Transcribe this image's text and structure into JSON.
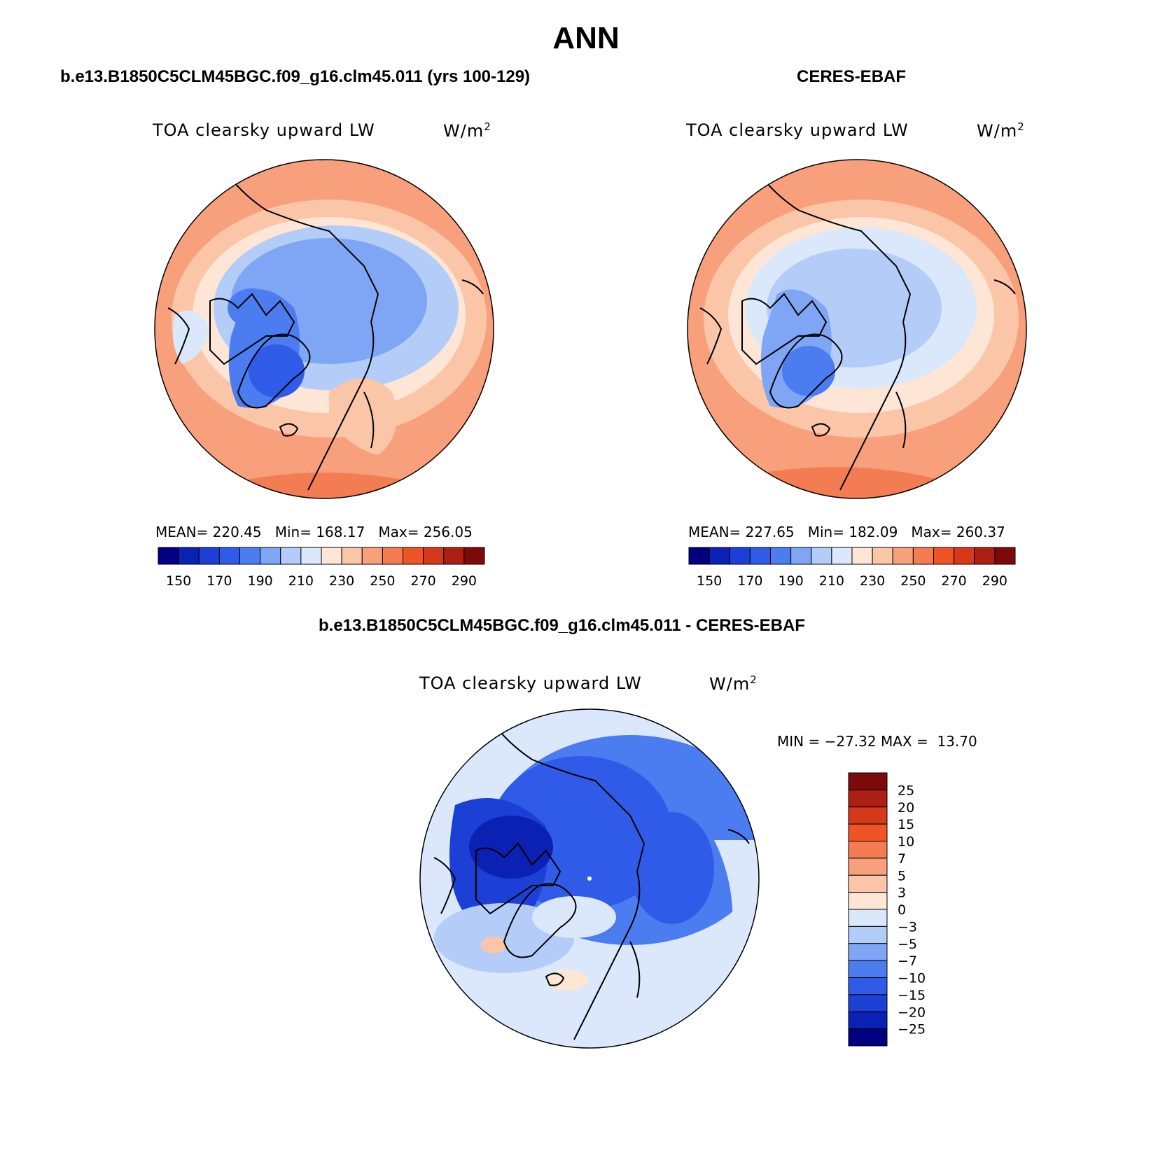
{
  "season": "ANN",
  "case_label": "b.e13.B1850C5CLM45BGC.f09_g16.clm45.011 (yrs 100-129)",
  "obs_label": "CERES-EBAF",
  "diff_label": "b.e13.B1850C5CLM45BGC.f09_g16.clm45.011 - CERES-EBAF",
  "variable": "TOA clearsky upward LW",
  "units": "W/m",
  "units_exp": "2",
  "panels": {
    "model": {
      "mean_label": "MEAN=",
      "mean": "220.45",
      "min_label": "Min=",
      "min": "168.17",
      "max_label": "Max=",
      "max": "256.05"
    },
    "obs": {
      "mean_label": "MEAN=",
      "mean": "227.65",
      "min_label": "Min=",
      "min": "182.09",
      "max_label": "Max=",
      "max": "260.37"
    },
    "diff": {
      "min_label": "MIN =",
      "min": "−27.32",
      "max_label": "MAX =",
      "max": "13.70"
    }
  },
  "abs_colorbar": {
    "colors": [
      "#000080",
      "#0a21b4",
      "#1c3fd6",
      "#2f5be8",
      "#4b7cf0",
      "#7ea6f5",
      "#b4cdf8",
      "#dbe8fc",
      "#fde6d6",
      "#fbc6a8",
      "#f8a07c",
      "#f47c52",
      "#ef5426",
      "#d6381a",
      "#ab2012",
      "#7d0a0a"
    ],
    "tick_labels": [
      "150",
      "170",
      "190",
      "210",
      "230",
      "250",
      "270",
      "290"
    ]
  },
  "diff_colorbar": {
    "colors": [
      "#000080",
      "#0a21b4",
      "#1c3fd6",
      "#2f5be8",
      "#4b7cf0",
      "#7ea6f5",
      "#b4cdf8",
      "#dbe8fc",
      "#fde6d6",
      "#fbc6a8",
      "#f8a07c",
      "#f47c52",
      "#ef5426",
      "#d6381a",
      "#ab2012",
      "#7d0a0a"
    ],
    "tick_labels": [
      "25",
      "20",
      "15",
      "10",
      "7",
      "5",
      "3",
      "0",
      "−3",
      "−5",
      "−7",
      "−10",
      "−15",
      "−20",
      "−25"
    ]
  },
  "chart_data": [
    {
      "type": "heatmap",
      "title": "TOA clearsky upward LW",
      "subtitle": "b.e13.B1850C5CLM45BGC.f09_g16.clm45.011 (yrs 100-129)",
      "units": "W/m2",
      "projection": "north polar stereographic",
      "levels": [
        140,
        150,
        160,
        170,
        180,
        190,
        200,
        210,
        220,
        230,
        240,
        250,
        260,
        270,
        280,
        290,
        300
      ],
      "mean": 220.45,
      "min": 168.17,
      "max": 256.05
    },
    {
      "type": "heatmap",
      "title": "TOA clearsky upward LW",
      "subtitle": "CERES-EBAF",
      "units": "W/m2",
      "projection": "north polar stereographic",
      "levels": [
        140,
        150,
        160,
        170,
        180,
        190,
        200,
        210,
        220,
        230,
        240,
        250,
        260,
        270,
        280,
        290,
        300
      ],
      "mean": 227.65,
      "min": 182.09,
      "max": 260.37
    },
    {
      "type": "heatmap",
      "title": "TOA clearsky upward LW",
      "subtitle": "b.e13.B1850C5CLM45BGC.f09_g16.clm45.011 - CERES-EBAF",
      "units": "W/m2",
      "projection": "north polar stereographic",
      "levels": [
        -25,
        -20,
        -15,
        -10,
        -7,
        -5,
        -3,
        0,
        3,
        5,
        7,
        10,
        15,
        20,
        25
      ],
      "min": -27.32,
      "max": 13.7
    }
  ]
}
